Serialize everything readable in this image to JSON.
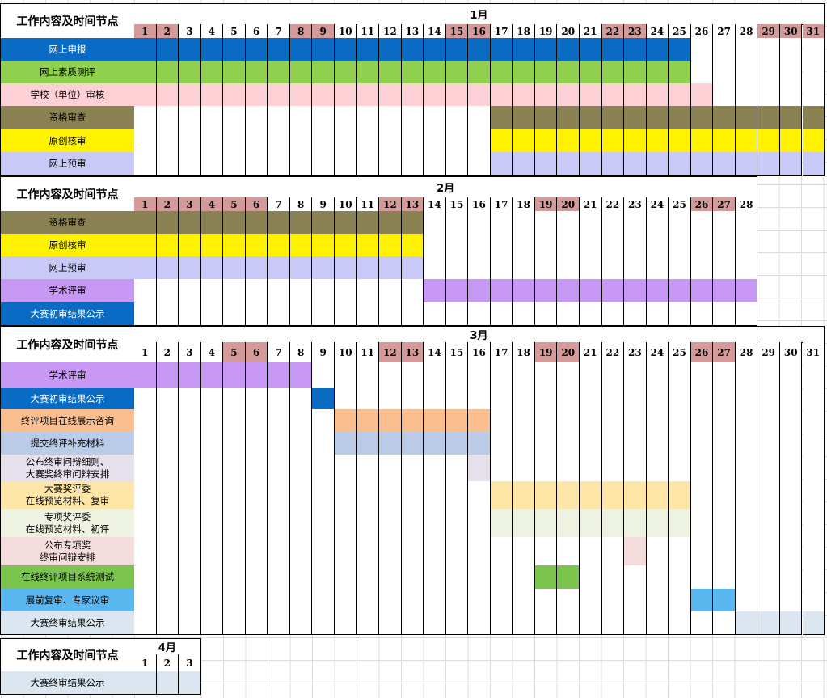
{
  "header_title": "工作内容及时间节点",
  "colors": {
    "weekend": "#d49a9a",
    "white": "#ffffff"
  },
  "sections": [
    {
      "month": "1月",
      "days": 31,
      "weekends": [
        1,
        2,
        8,
        9,
        15,
        16,
        22,
        23,
        29,
        30,
        31
      ],
      "rows": [
        {
          "label": "网上申报",
          "label_bg": "#0a6bc4",
          "label_color": "#ffffff",
          "bar_color": "#0a6bc4",
          "start": 1,
          "end": 25
        },
        {
          "label": "网上素质测评",
          "label_bg": "#8fd14f",
          "label_color": "#000000",
          "bar_color": "#8fd14f",
          "start": 1,
          "end": 25
        },
        {
          "label": "学校（单位）审核",
          "label_bg": "#fcd0d4",
          "label_color": "#000000",
          "bar_color": "#fcd0d4",
          "start": 1,
          "end": 26
        },
        {
          "label": "资格审查",
          "label_bg": "#8b8254",
          "label_color": "#000000",
          "bar_color": "#8b8254",
          "start": 17,
          "end": 31
        },
        {
          "label": "原创核审",
          "label_bg": "#fff200",
          "label_color": "#000000",
          "bar_color": "#fff200",
          "start": 17,
          "end": 31
        },
        {
          "label": "网上预审",
          "label_bg": "#c9c9f7",
          "label_color": "#000000",
          "bar_color": "#c9c9f7",
          "start": 17,
          "end": 31
        }
      ]
    },
    {
      "month": "2月",
      "days": 28,
      "weekends": [
        1,
        2,
        3,
        4,
        5,
        6,
        12,
        13,
        19,
        20,
        26,
        27
      ],
      "rows": [
        {
          "label": "资格审查",
          "label_bg": "#8b8254",
          "label_color": "#000000",
          "bar_color": "#8b8254",
          "start": 1,
          "end": 13
        },
        {
          "label": "原创核审",
          "label_bg": "#fff200",
          "label_color": "#000000",
          "bar_color": "#fff200",
          "start": 1,
          "end": 13
        },
        {
          "label": "网上预审",
          "label_bg": "#c9c9f7",
          "label_color": "#000000",
          "bar_color": "#c9c9f7",
          "start": 1,
          "end": 13
        },
        {
          "label": "学术评审",
          "label_bg": "#c898f5",
          "label_color": "#000000",
          "bar_color": "#c898f5",
          "start": 14,
          "end": 28
        },
        {
          "label": "大赛初审结果公示",
          "label_bg": "#0a6bc4",
          "label_color": "#ffffff",
          "bar_color": "",
          "start": 0,
          "end": 0
        }
      ]
    },
    {
      "month": "3月",
      "days": 31,
      "weekends": [
        5,
        6,
        12,
        13,
        19,
        20,
        26,
        27
      ],
      "rows": [
        {
          "label": "学术评审",
          "label_bg": "#c898f5",
          "label_color": "#000000",
          "bar_color": "#c898f5",
          "start": 1,
          "end": 8
        },
        {
          "label": "大赛初审结果公示",
          "label_bg": "#0a6bc4",
          "label_color": "#ffffff",
          "bar_color": "#0a6bc4",
          "start": 9,
          "end": 9
        },
        {
          "label": "终评项目在线展示咨询",
          "label_bg": "#fbbf8f",
          "label_color": "#000000",
          "bar_color": "#fbbf8f",
          "start": 10,
          "end": 16
        },
        {
          "label": "提交终评补充材料",
          "label_bg": "#b9cbe6",
          "label_color": "#000000",
          "bar_color": "#b9cbe6",
          "start": 10,
          "end": 16
        },
        {
          "label": "公布终审问辩细则、\n大赛奖终审问辩安排",
          "label_bg": "#e6e0ec",
          "label_color": "#000000",
          "bar_color": "#e6e0ec",
          "start": 16,
          "end": 16
        },
        {
          "label": "大赛奖评委\n在线预览材料、复审",
          "label_bg": "#fde6a8",
          "label_color": "#000000",
          "bar_color": "#fde6a8",
          "start": 17,
          "end": 25
        },
        {
          "label": "专项奖评委\n在线预览材料、初评",
          "label_bg": "#eef2e0",
          "label_color": "#000000",
          "bar_color": "#eef2e0",
          "start": 17,
          "end": 25
        },
        {
          "label": "公布专项奖\n终审问辩安排",
          "label_bg": "#f5dcdc",
          "label_color": "#000000",
          "bar_color": "#f5dcdc",
          "start": 23,
          "end": 23
        },
        {
          "label": "在线终评项目系统测试",
          "label_bg": "#7bc44e",
          "label_color": "#000000",
          "bar_color": "#7bc44e",
          "start": 19,
          "end": 20
        },
        {
          "label": "展前复审、专家议审",
          "label_bg": "#5bb7f0",
          "label_color": "#000000",
          "bar_color": "#5bb7f0",
          "start": 26,
          "end": 27
        },
        {
          "label": "大赛终审结果公示",
          "label_bg": "#dce6f0",
          "label_color": "#000000",
          "bar_color": "#dce6f0",
          "start": 28,
          "end": 31
        }
      ]
    },
    {
      "month": "4月",
      "days": 3,
      "weekends": [],
      "rows": [
        {
          "label": "大赛终审结果公示",
          "label_bg": "#dce6f0",
          "label_color": "#000000",
          "bar_color": "#dce6f0",
          "start": 1,
          "end": 3
        }
      ]
    }
  ]
}
